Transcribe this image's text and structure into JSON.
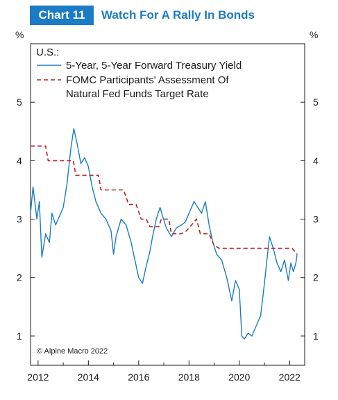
{
  "header": {
    "chart_number": "Chart 11",
    "title": "Watch For A Rally In Bonds"
  },
  "chart_data": {
    "type": "line",
    "title": "Watch For A Rally In Bonds",
    "region_label": "U.S.:",
    "y_unit_left": "%",
    "y_unit_right": "%",
    "copyright": "© Alpine Macro 2022",
    "xlim": [
      2011.7,
      2022.6
    ],
    "ylim": [
      0.5,
      6.0
    ],
    "y_ticks": [
      1,
      2,
      3,
      4,
      5
    ],
    "x_ticks": [
      2012,
      2014,
      2016,
      2018,
      2020,
      2022
    ],
    "legend": "top-left",
    "grid": false,
    "colors": {
      "yield": "#1b7bc4",
      "fomc": "#b22026"
    },
    "series": [
      {
        "name": "5-Year, 5-Year Forward Treasury Yield",
        "legend_label_lines": [
          "5-Year, 5-Year Forward Treasury Yield"
        ],
        "style": "solid",
        "x": [
          2011.7,
          2011.8,
          2011.95,
          2012.05,
          2012.15,
          2012.3,
          2012.45,
          2012.55,
          2012.7,
          2012.85,
          2013.0,
          2013.15,
          2013.3,
          2013.42,
          2013.55,
          2013.7,
          2013.85,
          2014.0,
          2014.15,
          2014.3,
          2014.5,
          2014.7,
          2014.9,
          2015.0,
          2015.1,
          2015.3,
          2015.5,
          2015.7,
          2015.85,
          2016.0,
          2016.15,
          2016.3,
          2016.45,
          2016.55,
          2016.7,
          2016.85,
          2016.95,
          2017.1,
          2017.3,
          2017.5,
          2017.7,
          2017.85,
          2018.0,
          2018.2,
          2018.35,
          2018.5,
          2018.65,
          2018.8,
          2018.95,
          2019.1,
          2019.3,
          2019.5,
          2019.7,
          2019.85,
          2020.0,
          2020.1,
          2020.2,
          2020.35,
          2020.5,
          2020.7,
          2020.85,
          2021.0,
          2021.1,
          2021.2,
          2021.35,
          2021.5,
          2021.65,
          2021.8,
          2021.95,
          2022.05,
          2022.15,
          2022.25,
          2022.3
        ],
        "values": [
          3.1,
          3.55,
          3.0,
          3.3,
          2.35,
          2.75,
          2.6,
          3.1,
          2.9,
          3.05,
          3.2,
          3.6,
          4.2,
          4.55,
          4.3,
          3.95,
          4.05,
          3.9,
          3.55,
          3.3,
          3.1,
          3.0,
          2.8,
          2.4,
          2.7,
          3.0,
          2.9,
          2.6,
          2.3,
          2.0,
          1.9,
          2.2,
          2.45,
          2.7,
          3.0,
          3.2,
          3.05,
          2.85,
          2.7,
          2.85,
          2.9,
          2.95,
          3.1,
          3.3,
          3.2,
          3.1,
          3.3,
          2.9,
          2.6,
          2.4,
          2.3,
          2.0,
          1.6,
          1.95,
          1.8,
          1.0,
          0.95,
          1.05,
          1.0,
          1.2,
          1.35,
          1.9,
          2.3,
          2.7,
          2.5,
          2.25,
          2.1,
          2.3,
          1.95,
          2.25,
          2.1,
          2.25,
          2.4
        ]
      },
      {
        "name": "FOMC Participants' Assessment Of Natural Fed Funds Target Rate",
        "legend_label_lines": [
          "FOMC Participants' Assessment Of",
          "Natural Fed Funds Target Rate"
        ],
        "style": "dashed",
        "x": [
          2011.7,
          2012.3,
          2012.4,
          2013.4,
          2013.5,
          2014.4,
          2014.5,
          2015.4,
          2015.6,
          2015.9,
          2016.1,
          2016.3,
          2016.45,
          2016.8,
          2016.9,
          2017.2,
          2017.3,
          2017.7,
          2017.9,
          2018.3,
          2018.45,
          2018.8,
          2019.0,
          2019.2,
          2022.1,
          2022.3
        ],
        "values": [
          4.25,
          4.25,
          4.0,
          4.0,
          3.75,
          3.75,
          3.5,
          3.5,
          3.25,
          3.25,
          3.0,
          3.0,
          2.87,
          2.87,
          3.0,
          3.0,
          2.75,
          2.75,
          2.8,
          3.0,
          2.75,
          2.75,
          2.55,
          2.5,
          2.5,
          2.4
        ]
      }
    ]
  }
}
